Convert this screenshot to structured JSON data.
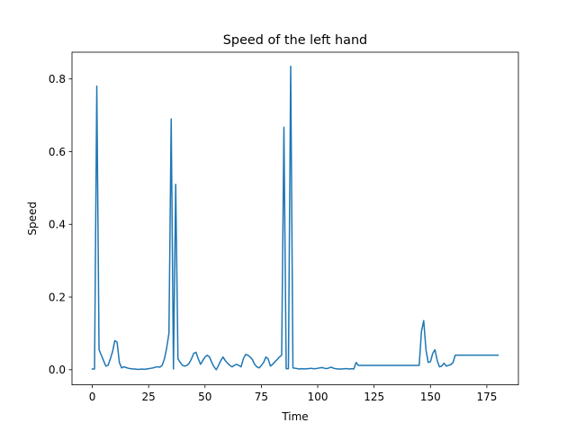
{
  "chart_data": {
    "type": "line",
    "title": "Speed of the left hand",
    "xlabel": "Time",
    "ylabel": "Speed",
    "xlim": [
      -9,
      189
    ],
    "ylim": [
      -0.0416,
      0.8736
    ],
    "xticks": [
      0,
      25,
      50,
      75,
      100,
      125,
      150,
      175
    ],
    "xtick_labels": [
      "0",
      "25",
      "50",
      "75",
      "100",
      "125",
      "150",
      "175"
    ],
    "yticks": [
      0.0,
      0.2,
      0.4,
      0.6,
      0.8
    ],
    "ytick_labels": [
      "0.0",
      "0.2",
      "0.4",
      "0.6",
      "0.8"
    ],
    "grid": false,
    "colors": {
      "line": "#1f77b4"
    },
    "series": [
      {
        "x": [
          0,
          1,
          2,
          3,
          4,
          5,
          6,
          7,
          8,
          9,
          10,
          11,
          12,
          13,
          14,
          15,
          16,
          17,
          18,
          19,
          20,
          21,
          22,
          23,
          24,
          25,
          26,
          27,
          28,
          29,
          30,
          31,
          32,
          33,
          34,
          35,
          36,
          37,
          38,
          39,
          40,
          41,
          42,
          43,
          44,
          45,
          46,
          47,
          48,
          49,
          50,
          51,
          52,
          53,
          54,
          55,
          56,
          57,
          58,
          59,
          60,
          61,
          62,
          63,
          64,
          65,
          66,
          67,
          68,
          69,
          70,
          71,
          72,
          73,
          74,
          75,
          76,
          77,
          78,
          79,
          80,
          81,
          82,
          83,
          84,
          85,
          86,
          87,
          88,
          89,
          90,
          91,
          92,
          93,
          94,
          95,
          96,
          97,
          98,
          99,
          100,
          101,
          102,
          103,
          104,
          105,
          106,
          107,
          108,
          109,
          110,
          111,
          112,
          113,
          114,
          115,
          116,
          117,
          118,
          119,
          120,
          121,
          122,
          123,
          124,
          125,
          126,
          127,
          128,
          129,
          130,
          131,
          132,
          133,
          134,
          135,
          136,
          137,
          138,
          139,
          140,
          141,
          142,
          143,
          144,
          145,
          146,
          147,
          148,
          149,
          150,
          151,
          152,
          153,
          154,
          155,
          156,
          157,
          158,
          159,
          160,
          161,
          162,
          163,
          164,
          165,
          166,
          167,
          168,
          169,
          170,
          171,
          172,
          173,
          174,
          175,
          176,
          177,
          178,
          179,
          180
        ],
        "values": [
          0.002,
          0.002,
          0.78,
          0.055,
          0.04,
          0.025,
          0.01,
          0.012,
          0.03,
          0.05,
          0.08,
          0.076,
          0.02,
          0.005,
          0.008,
          0.006,
          0.004,
          0.003,
          0.002,
          0.002,
          0.001,
          0.001,
          0.002,
          0.001,
          0.002,
          0.003,
          0.004,
          0.005,
          0.007,
          0.008,
          0.007,
          0.012,
          0.03,
          0.06,
          0.1,
          0.69,
          0.002,
          0.51,
          0.03,
          0.02,
          0.012,
          0.01,
          0.012,
          0.018,
          0.03,
          0.045,
          0.048,
          0.03,
          0.015,
          0.025,
          0.035,
          0.04,
          0.035,
          0.02,
          0.008,
          0.0,
          0.012,
          0.025,
          0.035,
          0.025,
          0.018,
          0.012,
          0.008,
          0.012,
          0.015,
          0.012,
          0.008,
          0.03,
          0.042,
          0.04,
          0.035,
          0.028,
          0.015,
          0.008,
          0.005,
          0.012,
          0.02,
          0.035,
          0.03,
          0.01,
          0.015,
          0.022,
          0.028,
          0.035,
          0.04,
          0.667,
          0.003,
          0.003,
          0.835,
          0.005,
          0.004,
          0.003,
          0.002,
          0.003,
          0.002,
          0.003,
          0.003,
          0.004,
          0.003,
          0.003,
          0.004,
          0.005,
          0.006,
          0.004,
          0.003,
          0.005,
          0.007,
          0.004,
          0.003,
          0.002,
          0.002,
          0.002,
          0.003,
          0.003,
          0.002,
          0.003,
          0.002,
          0.02,
          0.012,
          0.012,
          0.012,
          0.012,
          0.012,
          0.012,
          0.012,
          0.012,
          0.012,
          0.012,
          0.012,
          0.012,
          0.012,
          0.012,
          0.012,
          0.012,
          0.012,
          0.012,
          0.012,
          0.012,
          0.012,
          0.012,
          0.012,
          0.012,
          0.012,
          0.012,
          0.012,
          0.012,
          0.105,
          0.135,
          0.055,
          0.02,
          0.022,
          0.045,
          0.055,
          0.025,
          0.008,
          0.01,
          0.018,
          0.01,
          0.012,
          0.014,
          0.02,
          0.04,
          0.04,
          0.04,
          0.04,
          0.04,
          0.04,
          0.04,
          0.04,
          0.04,
          0.04,
          0.04,
          0.04,
          0.04,
          0.04,
          0.04,
          0.04,
          0.04,
          0.04,
          0.04,
          0.04
        ]
      }
    ]
  }
}
